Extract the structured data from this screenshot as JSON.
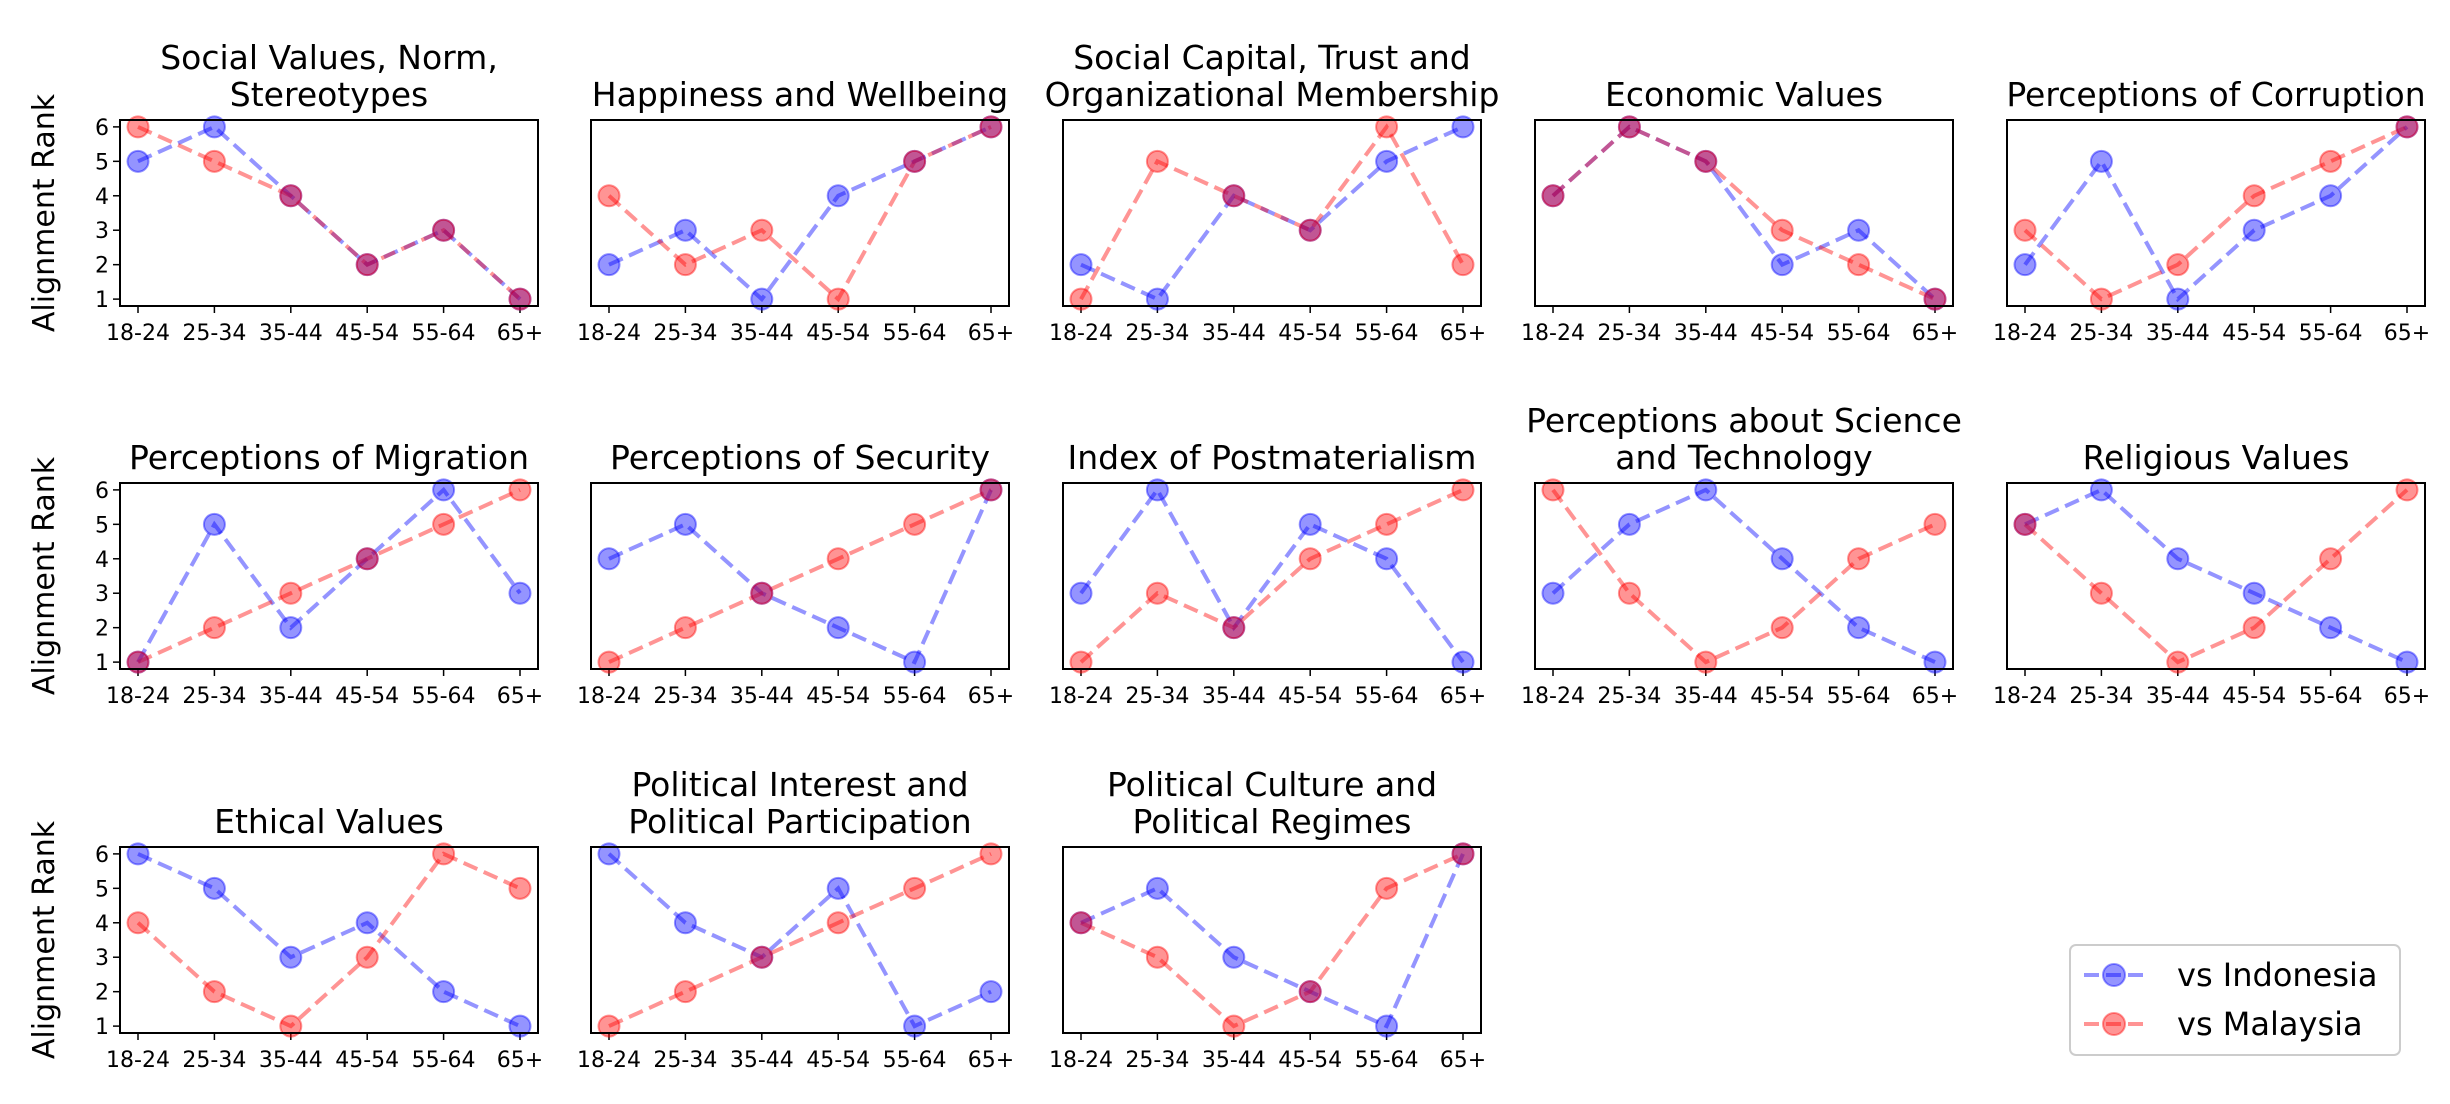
{
  "chart_data": {
    "type": "line",
    "ylabel": "Alignment Rank",
    "categories": [
      "18-24",
      "25-34",
      "35-44",
      "45-54",
      "55-64",
      "65+"
    ],
    "yticks": [
      1,
      2,
      3,
      4,
      5,
      6
    ],
    "ylim": [
      0.8,
      6.2
    ],
    "legend": {
      "placement": "lower-right",
      "entries": [
        "vs Indonesia",
        "vs Malaysia"
      ]
    },
    "series_colors": {
      "vs Indonesia": "#0000ff",
      "vs Malaysia": "#ff0000"
    },
    "overlap_color": "#8b1a5a",
    "panels": [
      {
        "title": [
          "Social Values, Norm,",
          "Stereotypes"
        ],
        "indonesia": [
          5,
          6,
          4,
          2,
          3,
          1
        ],
        "malaysia": [
          6,
          5,
          4,
          2,
          3,
          1
        ]
      },
      {
        "title": [
          "Happiness and Wellbeing"
        ],
        "indonesia": [
          2,
          3,
          1,
          4,
          5,
          6
        ],
        "malaysia": [
          4,
          2,
          3,
          1,
          5,
          6
        ]
      },
      {
        "title": [
          "Social Capital, Trust and",
          "Organizational Membership"
        ],
        "indonesia": [
          2,
          1,
          4,
          3,
          5,
          6
        ],
        "malaysia": [
          1,
          5,
          4,
          3,
          6,
          2
        ]
      },
      {
        "title": [
          "Economic Values"
        ],
        "indonesia": [
          4,
          6,
          5,
          2,
          3,
          1
        ],
        "malaysia": [
          4,
          6,
          5,
          3,
          2,
          1
        ]
      },
      {
        "title": [
          "Perceptions of Corruption"
        ],
        "indonesia": [
          2,
          5,
          1,
          3,
          4,
          6
        ],
        "malaysia": [
          3,
          1,
          2,
          4,
          5,
          6
        ]
      },
      {
        "title": [
          "Perceptions of Migration"
        ],
        "indonesia": [
          1,
          5,
          2,
          4,
          6,
          3
        ],
        "malaysia": [
          1,
          2,
          3,
          4,
          5,
          6
        ]
      },
      {
        "title": [
          "Perceptions of Security"
        ],
        "indonesia": [
          4,
          5,
          3,
          2,
          1,
          6
        ],
        "malaysia": [
          1,
          2,
          3,
          4,
          5,
          6
        ]
      },
      {
        "title": [
          "Index of Postmaterialism"
        ],
        "indonesia": [
          3,
          6,
          2,
          5,
          4,
          1
        ],
        "malaysia": [
          1,
          3,
          2,
          4,
          5,
          6
        ]
      },
      {
        "title": [
          "Perceptions about Science",
          "and Technology"
        ],
        "indonesia": [
          3,
          5,
          6,
          4,
          2,
          1
        ],
        "malaysia": [
          6,
          3,
          1,
          2,
          4,
          5
        ]
      },
      {
        "title": [
          "Religious Values"
        ],
        "indonesia": [
          5,
          6,
          4,
          3,
          2,
          1
        ],
        "malaysia": [
          5,
          3,
          1,
          2,
          4,
          6
        ]
      },
      {
        "title": [
          "Ethical Values"
        ],
        "indonesia": [
          6,
          5,
          3,
          4,
          2,
          1
        ],
        "malaysia": [
          4,
          2,
          1,
          3,
          6,
          5
        ]
      },
      {
        "title": [
          "Political Interest and",
          "Political Participation"
        ],
        "indonesia": [
          6,
          4,
          3,
          5,
          1,
          2
        ],
        "malaysia": [
          1,
          2,
          3,
          4,
          5,
          6
        ]
      },
      {
        "title": [
          "Political Culture and",
          "Political Regimes"
        ],
        "indonesia": [
          4,
          5,
          3,
          2,
          1,
          6
        ],
        "malaysia": [
          4,
          3,
          1,
          2,
          5,
          6
        ]
      }
    ]
  }
}
